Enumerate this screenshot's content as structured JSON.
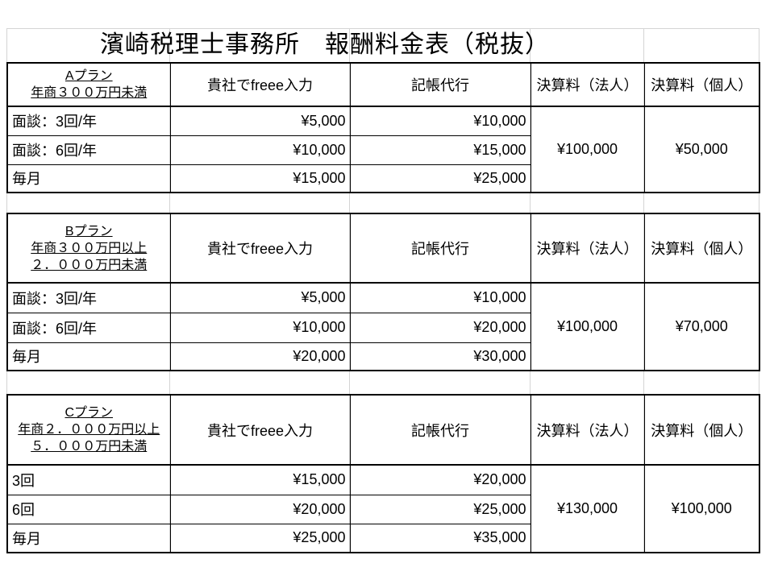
{
  "title": "濱崎税理士事務所　報酬料金表（税抜）",
  "columns": [
    "貴社でfreee入力",
    "記帳代行",
    "決算料（法人）",
    "決算料（個人）"
  ],
  "plans": [
    {
      "label_lines": [
        "Aプラン",
        "年商３００万円未満"
      ],
      "rows": [
        {
          "label": "面談：3回/年",
          "freee": "¥5,000",
          "bookkeeping": "¥10,000"
        },
        {
          "label": "面談：6回/年",
          "freee": "¥10,000",
          "bookkeeping": "¥15,000"
        },
        {
          "label": "毎月",
          "freee": "¥15,000",
          "bookkeeping": "¥25,000"
        }
      ],
      "settlement_corporate": "¥100,000",
      "settlement_individual": "¥50,000"
    },
    {
      "label_lines": [
        "Bプラン",
        "年商３００万円以上",
        "２．０００万円未満"
      ],
      "rows": [
        {
          "label": "面談：3回/年",
          "freee": "¥5,000",
          "bookkeeping": "¥10,000"
        },
        {
          "label": "面談：6回/年",
          "freee": "¥10,000",
          "bookkeeping": "¥20,000"
        },
        {
          "label": "毎月",
          "freee": "¥20,000",
          "bookkeeping": "¥30,000"
        }
      ],
      "settlement_corporate": "¥100,000",
      "settlement_individual": "¥70,000"
    },
    {
      "label_lines": [
        "Cプラン",
        "年商２．０００万円以上",
        "５．０００万円未満"
      ],
      "rows": [
        {
          "label": "3回",
          "freee": "¥15,000",
          "bookkeeping": "¥20,000"
        },
        {
          "label": "6回",
          "freee": "¥20,000",
          "bookkeeping": "¥25,000"
        },
        {
          "label": "毎月",
          "freee": "¥25,000",
          "bookkeeping": "¥35,000"
        }
      ],
      "settlement_corporate": "¥130,000",
      "settlement_individual": "¥100,000"
    }
  ]
}
